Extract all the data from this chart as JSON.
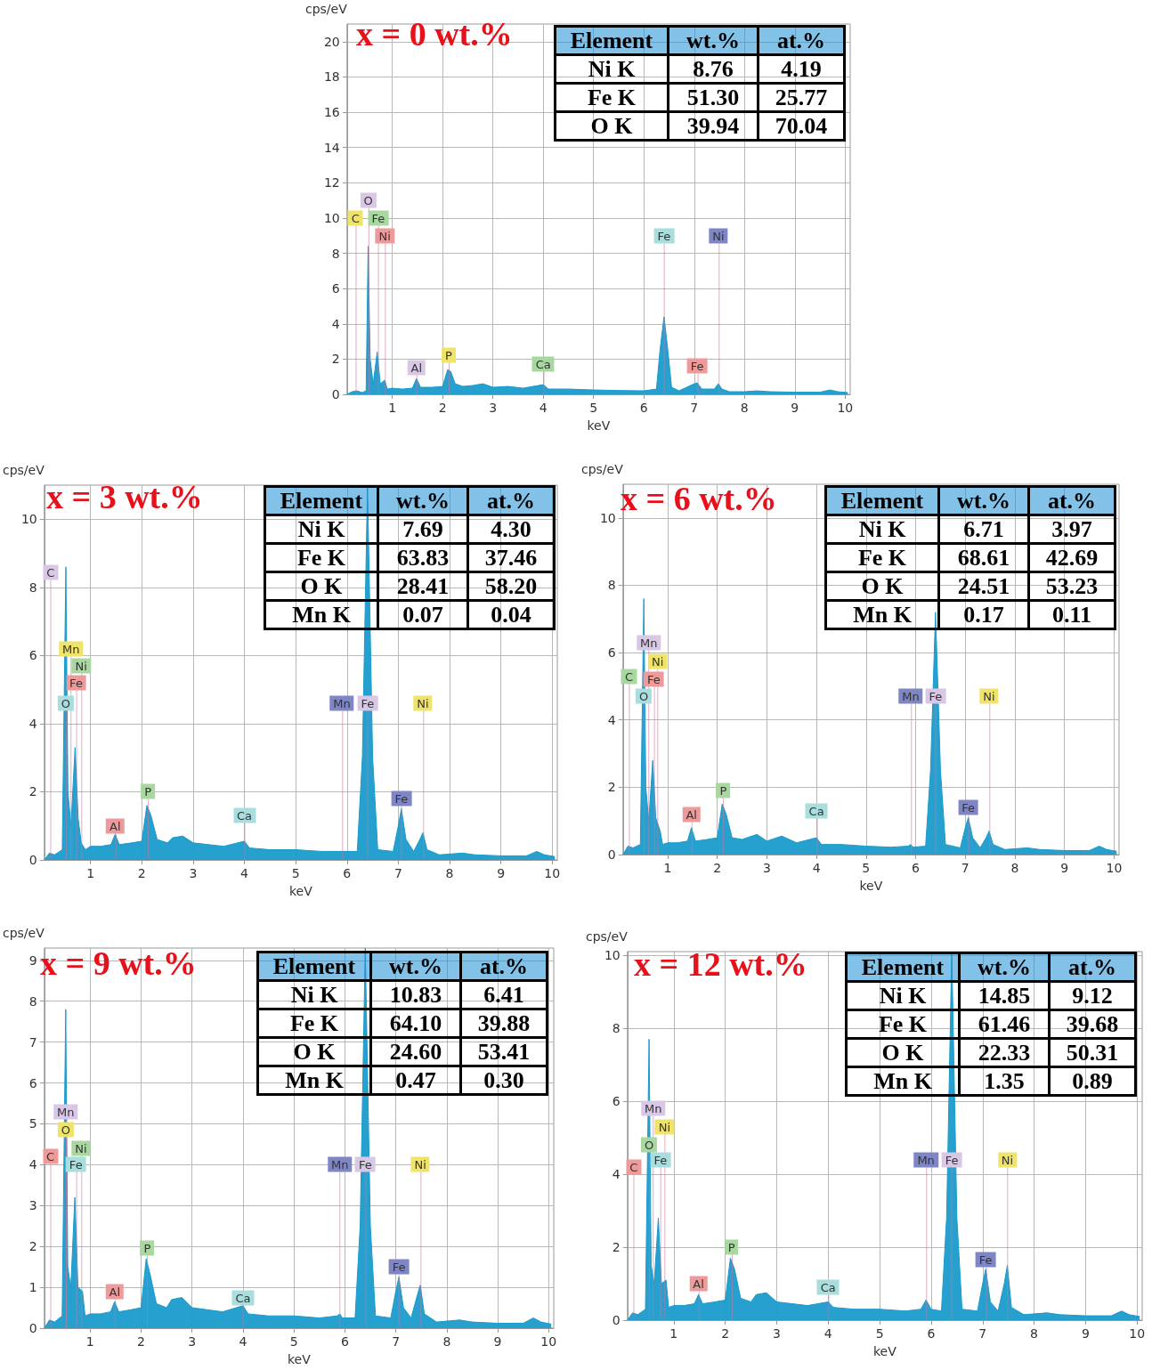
{
  "chart_data": [
    {
      "type": "area",
      "title": "x = 0 wt.%",
      "xlabel": "keV",
      "ylabel": "cps/eV",
      "xlim": [
        0.1,
        10.1
      ],
      "xticks": [
        1,
        2,
        3,
        4,
        5,
        6,
        7,
        8,
        9,
        10
      ],
      "ylim": [
        0,
        21
      ],
      "yticks": [
        0,
        2,
        4,
        6,
        8,
        10,
        12,
        14,
        16,
        18,
        20
      ],
      "grid": true,
      "x": [
        0.1,
        0.2,
        0.3,
        0.4,
        0.48,
        0.52,
        0.56,
        0.62,
        0.7,
        0.76,
        0.85,
        0.9,
        1.0,
        1.2,
        1.4,
        1.48,
        1.56,
        1.8,
        2.0,
        2.1,
        2.16,
        2.25,
        2.4,
        2.6,
        2.8,
        3.0,
        3.3,
        3.6,
        4.0,
        4.1,
        4.5,
        5.0,
        5.5,
        6.0,
        6.25,
        6.32,
        6.4,
        6.48,
        6.55,
        6.7,
        7.0,
        7.06,
        7.15,
        7.4,
        7.48,
        7.55,
        7.7,
        8.0,
        8.25,
        8.5,
        9.0,
        9.5,
        9.7,
        9.85,
        10.05
      ],
      "series": [
        {
          "color": "#1a9bcb",
          "values": [
            0,
            0.15,
            0.2,
            0.1,
            0.2,
            8.4,
            2.0,
            0.6,
            2.4,
            0.6,
            0.8,
            0.3,
            0.35,
            0.3,
            0.35,
            0.9,
            0.4,
            0.4,
            0.45,
            1.4,
            1.3,
            0.6,
            0.45,
            0.5,
            0.6,
            0.4,
            0.45,
            0.35,
            0.55,
            0.3,
            0.3,
            0.25,
            0.22,
            0.2,
            0.3,
            2.5,
            4.4,
            2.4,
            0.4,
            0.2,
            0.6,
            0.65,
            0.3,
            0.3,
            0.6,
            0.3,
            0.15,
            0.15,
            0.2,
            0.15,
            0.12,
            0.12,
            0.25,
            0.15,
            0.1
          ]
        }
      ],
      "annotations": [
        "Element",
        "wt.%",
        "at.%",
        "Ni K",
        "8.76",
        "4.19",
        "Fe K",
        "51.30",
        "25.77",
        "O K",
        "39.94",
        "70.04",
        {
          "text": "O",
          "x": 0.52,
          "y": 11
        },
        {
          "text": "C",
          "x": 0.27,
          "y": 10
        },
        {
          "text": "Fe",
          "x": 0.72,
          "y": 10
        },
        {
          "text": "Ni",
          "x": 0.85,
          "y": 9
        },
        {
          "text": "Fe",
          "x": 6.4,
          "y": 9
        },
        {
          "text": "Ni",
          "x": 7.48,
          "y": 9
        },
        {
          "text": "Al",
          "x": 1.48,
          "y": 1.5
        },
        {
          "text": "P",
          "x": 2.12,
          "y": 2.2
        },
        {
          "text": "Ca",
          "x": 4.0,
          "y": 1.7
        },
        {
          "text": "Fe",
          "x": 7.06,
          "y": 1.6
        }
      ]
    },
    {
      "type": "area",
      "title": "x = 3 wt.%",
      "xlabel": "keV",
      "ylabel": "cps/eV",
      "xlim": [
        0.1,
        10.1
      ],
      "xticks": [
        1,
        2,
        3,
        4,
        5,
        6,
        7,
        8,
        9,
        10
      ],
      "ylim": [
        0,
        11
      ],
      "yticks": [
        0,
        2,
        4,
        6,
        8,
        10
      ],
      "grid": true,
      "x": [
        0.1,
        0.2,
        0.3,
        0.45,
        0.52,
        0.56,
        0.62,
        0.7,
        0.76,
        0.82,
        0.9,
        1.0,
        1.2,
        1.4,
        1.48,
        1.56,
        1.8,
        2.0,
        2.1,
        2.18,
        2.3,
        2.5,
        2.6,
        2.8,
        3.0,
        3.3,
        3.6,
        4.0,
        4.1,
        4.5,
        5.0,
        5.5,
        5.9,
        6.2,
        6.3,
        6.4,
        6.5,
        6.6,
        6.9,
        7.0,
        7.06,
        7.15,
        7.3,
        7.42,
        7.48,
        7.56,
        7.8,
        8.25,
        8.5,
        9.0,
        9.5,
        9.7,
        9.85,
        10.05
      ],
      "series": [
        {
          "color": "#1a9bcb",
          "values": [
            0,
            0.2,
            0.15,
            0.3,
            8.6,
            2.0,
            1.0,
            3.3,
            1.2,
            0.5,
            0.3,
            0.4,
            0.4,
            0.45,
            0.75,
            0.45,
            0.5,
            0.55,
            1.6,
            1.3,
            0.6,
            0.5,
            0.65,
            0.7,
            0.5,
            0.45,
            0.4,
            0.55,
            0.35,
            0.3,
            0.3,
            0.25,
            0.25,
            0.25,
            3.0,
            11,
            3.0,
            0.3,
            0.25,
            1.0,
            1.5,
            0.6,
            0.25,
            0.6,
            0.8,
            0.3,
            0.15,
            0.2,
            0.15,
            0.12,
            0.12,
            0.25,
            0.15,
            0.1
          ]
        }
      ],
      "annotations": [
        "Element",
        "wt.%",
        "at.%",
        "Ni K",
        "7.69",
        "4.30",
        "Fe K",
        "63.83",
        "37.46",
        "O K",
        "28.41",
        "58.20",
        "Mn K",
        "0.07",
        "0.04",
        {
          "text": "C",
          "x": 0.22,
          "y": 8.45
        },
        {
          "text": "Mn",
          "x": 0.62,
          "y": 6.2
        },
        {
          "text": "Ni",
          "x": 0.82,
          "y": 5.7
        },
        {
          "text": "Fe",
          "x": 0.72,
          "y": 5.2
        },
        {
          "text": "O",
          "x": 0.52,
          "y": 4.6
        },
        {
          "text": "Mn",
          "x": 5.9,
          "y": 4.6
        },
        {
          "text": "Fe",
          "x": 6.4,
          "y": 4.6
        },
        {
          "text": "Ni",
          "x": 7.48,
          "y": 4.6
        },
        {
          "text": "P",
          "x": 2.12,
          "y": 2.0
        },
        {
          "text": "Al",
          "x": 1.48,
          "y": 1.0
        },
        {
          "text": "Ca",
          "x": 4.0,
          "y": 1.3
        },
        {
          "text": "Fe",
          "x": 7.06,
          "y": 1.8
        }
      ]
    },
    {
      "type": "area",
      "title": "x = 6 wt.%",
      "xlabel": "keV",
      "ylabel": "cps/eV",
      "xlim": [
        0.1,
        10.1
      ],
      "xticks": [
        1,
        2,
        3,
        4,
        5,
        6,
        7,
        8,
        9,
        10
      ],
      "ylim": [
        0,
        11
      ],
      "yticks": [
        0,
        2,
        4,
        6,
        8,
        10
      ],
      "grid": true,
      "x": [
        0.1,
        0.2,
        0.3,
        0.45,
        0.52,
        0.56,
        0.62,
        0.7,
        0.76,
        0.85,
        0.9,
        1.0,
        1.2,
        1.4,
        1.48,
        1.56,
        1.8,
        2.0,
        2.1,
        2.18,
        2.3,
        2.5,
        2.8,
        3.0,
        3.3,
        3.6,
        4.0,
        4.1,
        4.5,
        5.0,
        5.5,
        5.85,
        5.9,
        5.95,
        6.2,
        6.3,
        6.4,
        6.5,
        6.6,
        6.9,
        7.0,
        7.06,
        7.15,
        7.3,
        7.42,
        7.48,
        7.56,
        7.8,
        8.25,
        8.5,
        9.0,
        9.5,
        9.7,
        9.85,
        10.05
      ],
      "series": [
        {
          "color": "#1a9bcb",
          "values": [
            0,
            0.25,
            0.2,
            0.3,
            7.6,
            2.0,
            1.0,
            2.8,
            1.1,
            0.7,
            0.3,
            0.35,
            0.35,
            0.4,
            0.8,
            0.4,
            0.45,
            0.5,
            1.5,
            1.2,
            0.5,
            0.45,
            0.6,
            0.4,
            0.55,
            0.35,
            0.5,
            0.3,
            0.3,
            0.25,
            0.22,
            0.25,
            0.3,
            0.22,
            0.25,
            2.5,
            7.2,
            2.5,
            0.3,
            0.2,
            0.8,
            1.1,
            0.5,
            0.2,
            0.5,
            0.7,
            0.3,
            0.15,
            0.2,
            0.15,
            0.12,
            0.12,
            0.25,
            0.15,
            0.1
          ]
        }
      ],
      "annotations": [
        "Element",
        "wt.%",
        "at.%",
        "Ni K",
        "6.71",
        "3.97",
        "Fe K",
        "68.61",
        "42.69",
        "O K",
        "24.51",
        "53.23",
        "Mn K",
        "0.17",
        "0.11",
        {
          "text": "Mn",
          "x": 0.62,
          "y": 6.3
        },
        {
          "text": "Ni",
          "x": 0.8,
          "y": 5.75
        },
        {
          "text": "C",
          "x": 0.22,
          "y": 5.3
        },
        {
          "text": "Fe",
          "x": 0.72,
          "y": 5.2
        },
        {
          "text": "O",
          "x": 0.52,
          "y": 4.7
        },
        {
          "text": "Mn",
          "x": 5.9,
          "y": 4.7
        },
        {
          "text": "Fe",
          "x": 6.4,
          "y": 4.7
        },
        {
          "text": "Ni",
          "x": 7.48,
          "y": 4.7
        },
        {
          "text": "P",
          "x": 2.12,
          "y": 1.9
        },
        {
          "text": "Al",
          "x": 1.48,
          "y": 1.2
        },
        {
          "text": "Ca",
          "x": 4.0,
          "y": 1.3
        },
        {
          "text": "Fe",
          "x": 7.06,
          "y": 1.4
        }
      ]
    },
    {
      "type": "area",
      "title": "x = 9 wt.%",
      "xlabel": "keV",
      "ylabel": "cps/eV",
      "xlim": [
        0.1,
        10.1
      ],
      "xticks": [
        1,
        2,
        3,
        4,
        5,
        6,
        7,
        8,
        9,
        10
      ],
      "ylim": [
        0,
        9.3
      ],
      "yticks": [
        0,
        1,
        2,
        3,
        4,
        5,
        6,
        7,
        8,
        9
      ],
      "grid": true,
      "x": [
        0.1,
        0.2,
        0.3,
        0.45,
        0.52,
        0.56,
        0.62,
        0.7,
        0.76,
        0.85,
        0.9,
        1.0,
        1.2,
        1.4,
        1.48,
        1.56,
        1.8,
        2.0,
        2.1,
        2.18,
        2.3,
        2.5,
        2.6,
        2.8,
        3.0,
        3.3,
        3.6,
        4.0,
        4.1,
        4.5,
        5.0,
        5.5,
        5.85,
        5.9,
        5.95,
        6.2,
        6.3,
        6.4,
        6.5,
        6.6,
        6.9,
        7.0,
        7.06,
        7.15,
        7.3,
        7.42,
        7.48,
        7.56,
        7.8,
        8.25,
        8.5,
        9.0,
        9.5,
        9.7,
        9.85,
        10.05
      ],
      "series": [
        {
          "color": "#1a9bcb",
          "values": [
            0,
            0.2,
            0.15,
            0.3,
            7.8,
            1.5,
            1.0,
            3.2,
            1.0,
            0.9,
            0.3,
            0.35,
            0.35,
            0.4,
            0.65,
            0.4,
            0.45,
            0.5,
            1.7,
            1.3,
            0.6,
            0.5,
            0.7,
            0.75,
            0.5,
            0.45,
            0.4,
            0.55,
            0.35,
            0.3,
            0.3,
            0.25,
            0.3,
            0.35,
            0.25,
            0.25,
            2.5,
            9.3,
            2.5,
            0.3,
            0.25,
            0.9,
            1.25,
            0.5,
            0.25,
            0.8,
            1.05,
            0.35,
            0.15,
            0.2,
            0.15,
            0.12,
            0.12,
            0.25,
            0.15,
            0.1
          ]
        }
      ],
      "annotations": [
        "Element",
        "wt.%",
        "at.%",
        "Ni K",
        "10.83",
        "6.41",
        "Fe K",
        "64.10",
        "39.88",
        "O K",
        "24.60",
        "53.41",
        "Mn K",
        "0.47",
        "0.30",
        {
          "text": "Mn",
          "x": 0.52,
          "y": 5.3
        },
        {
          "text": "O",
          "x": 0.52,
          "y": 4.85
        },
        {
          "text": "Ni",
          "x": 0.82,
          "y": 4.4
        },
        {
          "text": "C",
          "x": 0.22,
          "y": 4.2
        },
        {
          "text": "Fe",
          "x": 0.72,
          "y": 4.0
        },
        {
          "text": "Mn",
          "x": 5.9,
          "y": 4.0
        },
        {
          "text": "Fe",
          "x": 6.4,
          "y": 4.0
        },
        {
          "text": "Ni",
          "x": 7.48,
          "y": 4.0
        },
        {
          "text": "P",
          "x": 2.12,
          "y": 1.95
        },
        {
          "text": "Al",
          "x": 1.48,
          "y": 0.9
        },
        {
          "text": "Ca",
          "x": 4.0,
          "y": 0.75
        },
        {
          "text": "Fe",
          "x": 7.06,
          "y": 1.5
        }
      ]
    },
    {
      "type": "area",
      "title": "x = 12 wt.%",
      "xlabel": "keV",
      "ylabel": "cps/eV",
      "xlim": [
        0.1,
        10.1
      ],
      "xticks": [
        1,
        2,
        3,
        4,
        5,
        6,
        7,
        8,
        9,
        10
      ],
      "ylim": [
        0,
        10.1
      ],
      "yticks": [
        0,
        2,
        4,
        6,
        8,
        10
      ],
      "grid": true,
      "x": [
        0.1,
        0.2,
        0.3,
        0.45,
        0.52,
        0.56,
        0.62,
        0.7,
        0.76,
        0.85,
        0.9,
        1.0,
        1.2,
        1.4,
        1.48,
        1.56,
        1.8,
        2.0,
        2.1,
        2.18,
        2.3,
        2.5,
        2.6,
        2.8,
        3.0,
        3.3,
        3.6,
        4.0,
        4.1,
        4.5,
        5.0,
        5.5,
        5.8,
        5.9,
        6.0,
        6.2,
        6.3,
        6.4,
        6.5,
        6.6,
        6.9,
        7.0,
        7.06,
        7.15,
        7.3,
        7.42,
        7.48,
        7.56,
        7.8,
        8.25,
        8.5,
        9.0,
        9.5,
        9.7,
        9.85,
        10.05
      ],
      "series": [
        {
          "color": "#1a9bcb",
          "values": [
            0,
            0.2,
            0.15,
            0.3,
            7.7,
            1.5,
            1.0,
            2.8,
            1.0,
            1.1,
            0.35,
            0.4,
            0.4,
            0.45,
            0.7,
            0.45,
            0.5,
            0.55,
            1.7,
            1.4,
            0.6,
            0.5,
            0.7,
            0.75,
            0.5,
            0.45,
            0.4,
            0.5,
            0.35,
            0.3,
            0.3,
            0.25,
            0.3,
            0.55,
            0.3,
            0.25,
            2.8,
            10.1,
            2.8,
            0.3,
            0.25,
            1.0,
            1.4,
            0.5,
            0.25,
            1.0,
            1.5,
            0.35,
            0.15,
            0.2,
            0.15,
            0.12,
            0.12,
            0.25,
            0.15,
            0.1
          ]
        }
      ],
      "annotations": [
        "Element",
        "wt.%",
        "at.%",
        "Ni K",
        "14.85",
        "9.12",
        "Fe K",
        "61.46",
        "39.68",
        "O K",
        "22.33",
        "50.31",
        "Mn K",
        "1.35",
        "0.89",
        {
          "text": "Mn",
          "x": 0.6,
          "y": 5.8
        },
        {
          "text": "Ni",
          "x": 0.82,
          "y": 5.3
        },
        {
          "text": "O",
          "x": 0.52,
          "y": 4.8
        },
        {
          "text": "C",
          "x": 0.22,
          "y": 4.2
        },
        {
          "text": "Fe",
          "x": 0.74,
          "y": 4.4
        },
        {
          "text": "Mn",
          "x": 5.9,
          "y": 4.4
        },
        {
          "text": "Fe",
          "x": 6.4,
          "y": 4.4
        },
        {
          "text": "Ni",
          "x": 7.48,
          "y": 4.4
        },
        {
          "text": "P",
          "x": 2.12,
          "y": 2.0
        },
        {
          "text": "Al",
          "x": 1.48,
          "y": 1.0
        },
        {
          "text": "Ca",
          "x": 4.0,
          "y": 0.9
        },
        {
          "text": "Fe",
          "x": 7.06,
          "y": 1.65
        }
      ]
    }
  ]
}
